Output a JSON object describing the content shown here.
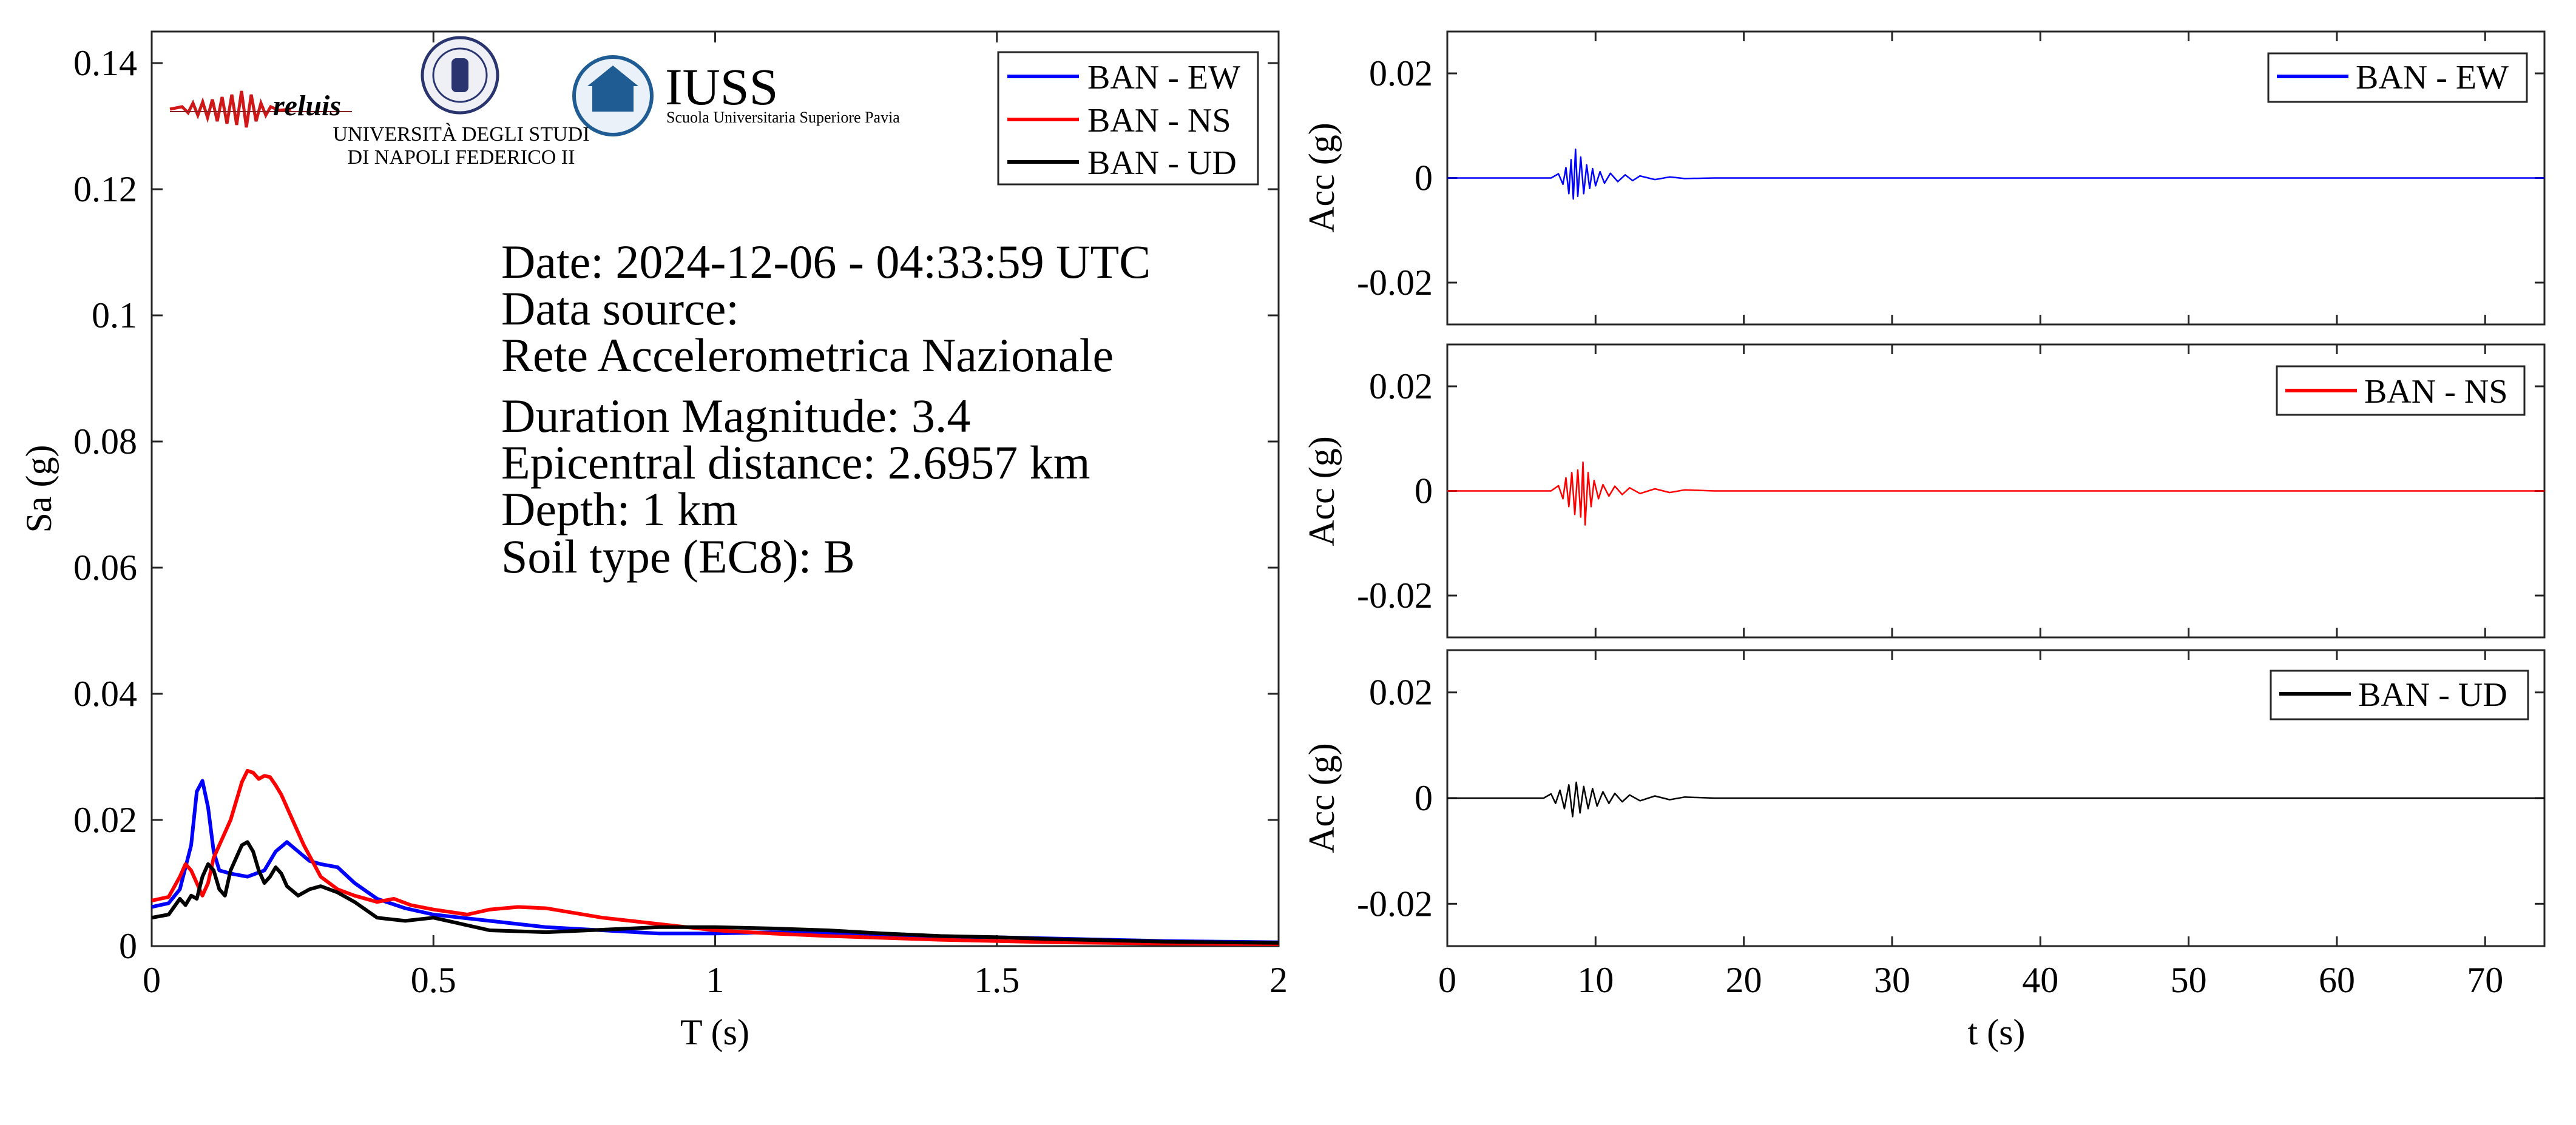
{
  "colors": {
    "ew": "#0000ff",
    "ns": "#ff0000",
    "ud": "#000000",
    "axis": "#262626"
  },
  "logos": {
    "reluis": "reluis",
    "unina": [
      "UNIVERSITÀ DEGLI STUDI",
      "DI NAPOLI FEDERICO II"
    ],
    "iuss": {
      "name": "IUSS",
      "subtitle": "Scuola Universitaria Superiore Pavia"
    }
  },
  "info": {
    "date": "Date: 2024-12-06 - 04:33:59 UTC",
    "source_label": "Data source:",
    "source": "Rete Accelerometrica Nazionale",
    "magnitude": "Duration Magnitude: 3.4",
    "distance": "Epicentral distance: 2.6957 km",
    "depth": "Depth: 1 km",
    "soil": "Soil type (EC8): B"
  },
  "chart_data": [
    {
      "type": "line",
      "xlabel": "T (s)",
      "ylabel": "Sa (g)",
      "xlim": [
        0,
        2
      ],
      "ylim": [
        0,
        0.145
      ],
      "xticks": [
        0,
        0.5,
        1,
        1.5,
        2
      ],
      "xtick_labels": [
        "0",
        "0.5",
        "1",
        "1.5",
        "2"
      ],
      "yticks": [
        0,
        0.02,
        0.04,
        0.06,
        0.08,
        0.1,
        0.12,
        0.14
      ],
      "ytick_labels": [
        "0",
        "0.02",
        "0.04",
        "0.06",
        "0.08",
        "0.1",
        "0.12",
        "0.14"
      ],
      "grid": false,
      "legend_position": "top-right",
      "series": [
        {
          "name": "BAN - EW",
          "color": "#0000ff",
          "x": [
            0,
            0.03,
            0.05,
            0.07,
            0.08,
            0.09,
            0.1,
            0.11,
            0.12,
            0.14,
            0.17,
            0.2,
            0.22,
            0.24,
            0.26,
            0.28,
            0.3,
            0.33,
            0.36,
            0.4,
            0.45,
            0.5,
            0.55,
            0.6,
            0.7,
            0.8,
            0.9,
            1.0,
            1.1,
            1.2,
            1.3,
            1.4,
            1.5,
            1.6,
            1.7,
            1.8,
            1.9,
            2.0
          ],
          "y": [
            0.0062,
            0.0068,
            0.009,
            0.016,
            0.0245,
            0.0262,
            0.022,
            0.015,
            0.012,
            0.0115,
            0.011,
            0.012,
            0.015,
            0.0165,
            0.015,
            0.0135,
            0.013,
            0.0125,
            0.01,
            0.0075,
            0.006,
            0.005,
            0.0045,
            0.004,
            0.003,
            0.0025,
            0.002,
            0.002,
            0.0022,
            0.002,
            0.0018,
            0.0015,
            0.0014,
            0.0012,
            0.001,
            0.0008,
            0.0007,
            0.0006
          ]
        },
        {
          "name": "BAN - NS",
          "color": "#ff0000",
          "x": [
            0,
            0.03,
            0.05,
            0.06,
            0.07,
            0.08,
            0.09,
            0.1,
            0.11,
            0.12,
            0.14,
            0.16,
            0.17,
            0.18,
            0.19,
            0.2,
            0.21,
            0.22,
            0.23,
            0.25,
            0.27,
            0.3,
            0.33,
            0.36,
            0.4,
            0.43,
            0.46,
            0.5,
            0.56,
            0.6,
            0.65,
            0.7,
            0.8,
            0.9,
            1.0,
            1.1,
            1.2,
            1.4,
            1.6,
            1.8,
            2.0
          ],
          "y": [
            0.0072,
            0.0078,
            0.011,
            0.013,
            0.012,
            0.01,
            0.008,
            0.01,
            0.014,
            0.016,
            0.02,
            0.026,
            0.0278,
            0.0275,
            0.0265,
            0.027,
            0.0268,
            0.0255,
            0.024,
            0.02,
            0.016,
            0.011,
            0.009,
            0.008,
            0.007,
            0.0075,
            0.0065,
            0.0058,
            0.005,
            0.0058,
            0.0062,
            0.006,
            0.0045,
            0.0035,
            0.0025,
            0.002,
            0.0016,
            0.001,
            0.0006,
            0.0004,
            0.0003
          ]
        },
        {
          "name": "BAN - UD",
          "color": "#000000",
          "x": [
            0,
            0.03,
            0.05,
            0.06,
            0.07,
            0.08,
            0.09,
            0.1,
            0.11,
            0.12,
            0.13,
            0.14,
            0.15,
            0.16,
            0.17,
            0.18,
            0.19,
            0.2,
            0.21,
            0.22,
            0.23,
            0.24,
            0.26,
            0.28,
            0.3,
            0.33,
            0.36,
            0.4,
            0.45,
            0.5,
            0.55,
            0.6,
            0.7,
            0.8,
            0.9,
            1.0,
            1.1,
            1.2,
            1.3,
            1.4,
            1.5,
            1.6,
            1.7,
            1.8,
            1.9,
            2.0
          ],
          "y": [
            0.0045,
            0.005,
            0.0075,
            0.0065,
            0.008,
            0.0075,
            0.011,
            0.013,
            0.012,
            0.009,
            0.008,
            0.012,
            0.014,
            0.016,
            0.0165,
            0.015,
            0.012,
            0.01,
            0.011,
            0.0125,
            0.0115,
            0.0095,
            0.008,
            0.009,
            0.0095,
            0.0085,
            0.007,
            0.0045,
            0.004,
            0.0045,
            0.0035,
            0.0025,
            0.0022,
            0.0026,
            0.003,
            0.003,
            0.0028,
            0.0025,
            0.002,
            0.0016,
            0.0014,
            0.0011,
            0.0009,
            0.0007,
            0.0006,
            0.0005
          ]
        }
      ]
    },
    {
      "type": "line",
      "ylabel": "Acc (g)",
      "xlim": [
        0,
        74
      ],
      "ylim": [
        -0.028,
        0.028
      ],
      "yticks": [
        -0.02,
        0,
        0.02
      ],
      "ytick_labels": [
        "-0.02",
        "0",
        "0.02"
      ],
      "grid": false,
      "legend_position": "top-right",
      "series": [
        {
          "name": "BAN - EW",
          "color": "#0000ff",
          "t": [
            0,
            7,
            7.5,
            7.8,
            8.0,
            8.2,
            8.35,
            8.5,
            8.65,
            8.8,
            9.0,
            9.2,
            9.4,
            9.6,
            9.8,
            10.0,
            10.3,
            10.6,
            11.0,
            11.5,
            12.0,
            12.5,
            13.0,
            14.0,
            15.0,
            16.0,
            18.0,
            74
          ],
          "y": [
            0,
            0,
            0.0008,
            -0.0012,
            0.002,
            -0.003,
            0.0035,
            -0.004,
            0.0055,
            -0.0035,
            0.004,
            -0.003,
            0.0025,
            -0.002,
            0.0018,
            -0.0015,
            0.0012,
            -0.001,
            0.0009,
            -0.0007,
            0.0006,
            -0.0005,
            0.0004,
            -0.0003,
            0.0002,
            -0.0001,
            0,
            0
          ]
        }
      ]
    },
    {
      "type": "line",
      "ylabel": "Acc (g)",
      "xlim": [
        0,
        74
      ],
      "ylim": [
        -0.028,
        0.028
      ],
      "yticks": [
        -0.02,
        0,
        0.02
      ],
      "ytick_labels": [
        "-0.02",
        "0",
        "0.02"
      ],
      "grid": false,
      "legend_position": "top-right",
      "series": [
        {
          "name": "BAN - NS",
          "color": "#ff0000",
          "t": [
            0,
            7,
            7.5,
            7.8,
            8.0,
            8.2,
            8.4,
            8.6,
            8.8,
            9.0,
            9.15,
            9.3,
            9.5,
            9.7,
            9.9,
            10.2,
            10.5,
            10.9,
            11.3,
            11.8,
            12.3,
            13.0,
            14.0,
            15.0,
            16.0,
            18.0,
            74
          ],
          "y": [
            0,
            0,
            0.001,
            -0.0015,
            0.0025,
            -0.003,
            0.0035,
            -0.0045,
            0.004,
            -0.005,
            0.0055,
            -0.0065,
            0.0035,
            -0.003,
            0.002,
            -0.0015,
            0.0012,
            -0.001,
            0.0009,
            -0.0007,
            0.0006,
            -0.0005,
            0.0004,
            -0.0003,
            0.0002,
            0,
            0
          ]
        }
      ]
    },
    {
      "type": "line",
      "xlabel": "t (s)",
      "ylabel": "Acc (g)",
      "xlim": [
        0,
        74
      ],
      "ylim": [
        -0.028,
        0.028
      ],
      "xticks": [
        0,
        10,
        20,
        30,
        40,
        50,
        60,
        70
      ],
      "xtick_labels": [
        "0",
        "10",
        "20",
        "30",
        "40",
        "50",
        "60",
        "70"
      ],
      "yticks": [
        -0.02,
        0,
        0.02
      ],
      "ytick_labels": [
        "-0.02",
        "0",
        "0.02"
      ],
      "grid": false,
      "legend_position": "top-right",
      "series": [
        {
          "name": "BAN - UD",
          "color": "#000000",
          "t": [
            0,
            6.5,
            7.0,
            7.3,
            7.6,
            7.9,
            8.2,
            8.45,
            8.7,
            8.95,
            9.2,
            9.5,
            9.8,
            10.1,
            10.5,
            10.9,
            11.3,
            11.8,
            12.3,
            13.0,
            14.0,
            15.0,
            16.0,
            18.0,
            74
          ],
          "y": [
            0,
            0,
            0.0008,
            -0.001,
            0.0015,
            -0.002,
            0.0025,
            -0.0035,
            0.003,
            -0.0028,
            0.0022,
            -0.002,
            0.0018,
            -0.0015,
            0.0012,
            -0.001,
            0.0009,
            -0.0007,
            0.0006,
            -0.0005,
            0.0004,
            -0.0003,
            0.0002,
            0,
            0
          ]
        }
      ]
    }
  ]
}
